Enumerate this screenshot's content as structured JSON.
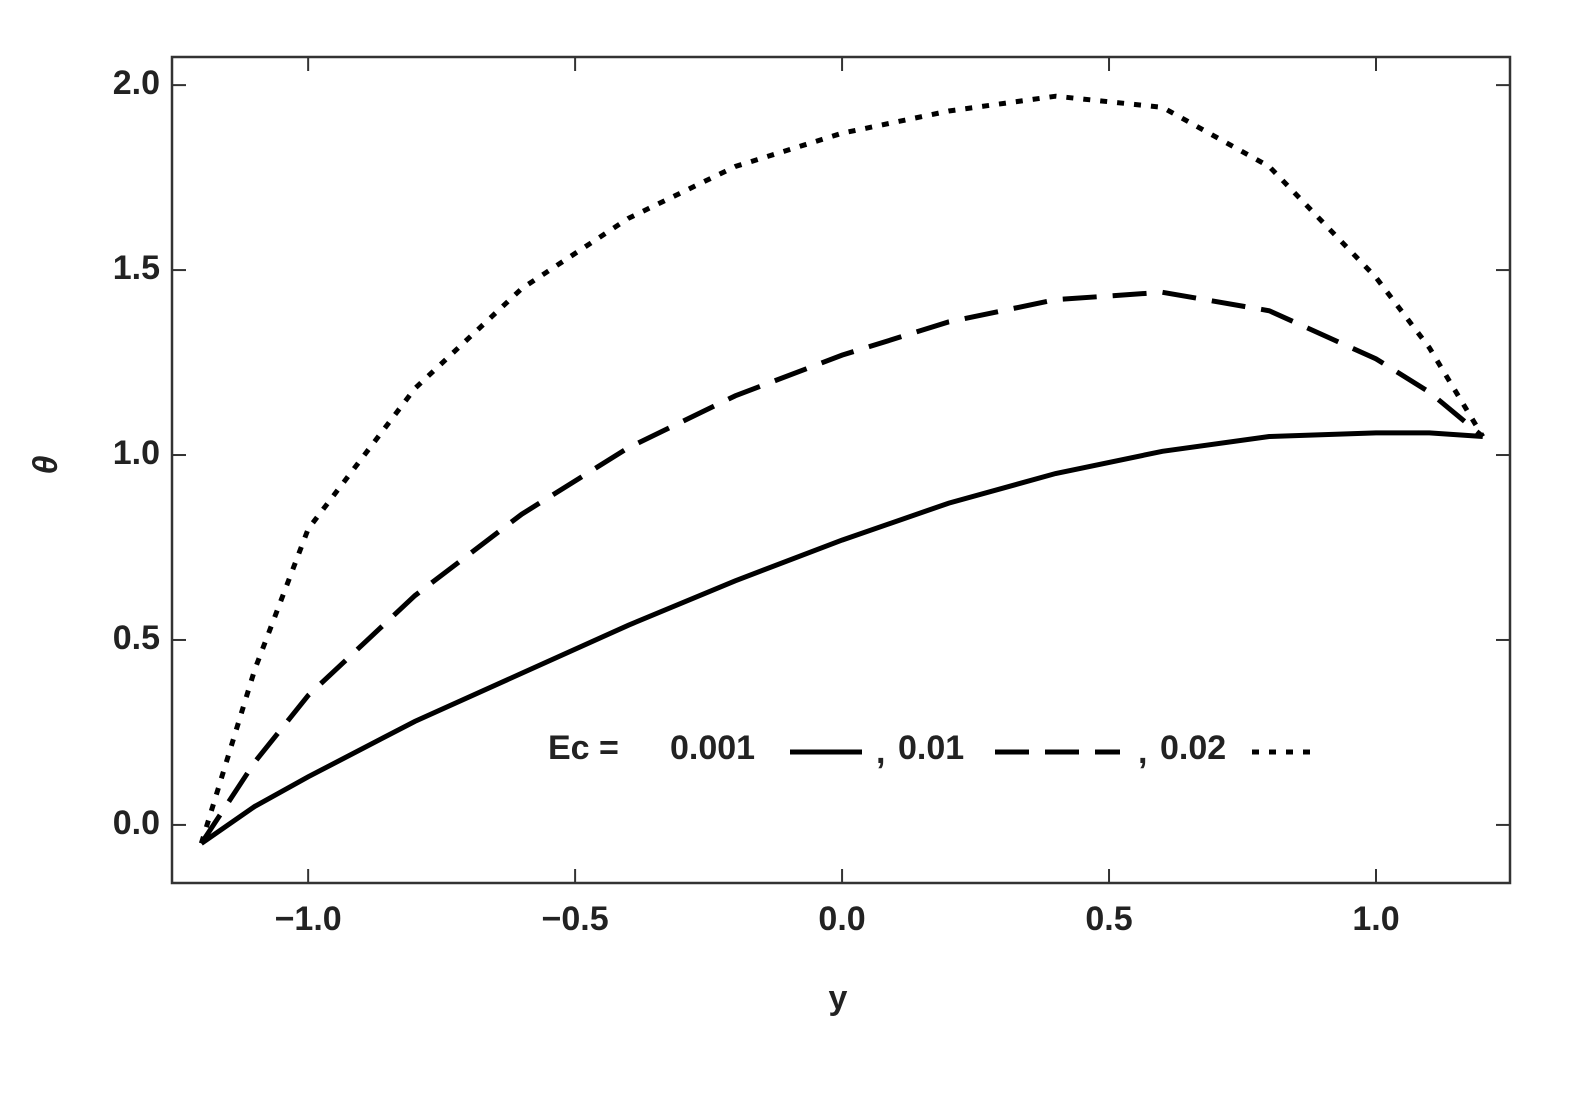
{
  "chart_data": {
    "type": "line",
    "xlabel": "y",
    "ylabel": "θ",
    "x": [
      -1.2,
      -1.1,
      -1.0,
      -0.8,
      -0.6,
      -0.4,
      -0.2,
      0,
      0.2,
      0.4,
      0.6,
      0.8,
      1.0,
      1.1,
      1.2
    ],
    "series": [
      {
        "name": "0.001",
        "color": "#000000",
        "dash": "solid",
        "values": [
          -0.05,
          0.05,
          0.13,
          0.28,
          0.41,
          0.54,
          0.66,
          0.77,
          0.87,
          0.95,
          1.01,
          1.05,
          1.06,
          1.06,
          1.05
        ]
      },
      {
        "name": "0.01",
        "color": "#000000",
        "dash": "dashed",
        "values": [
          -0.05,
          0.17,
          0.35,
          0.62,
          0.84,
          1.02,
          1.16,
          1.27,
          1.36,
          1.42,
          1.44,
          1.39,
          1.26,
          1.17,
          1.05
        ]
      },
      {
        "name": "0.02",
        "color": "#000000",
        "dash": "dotted",
        "values": [
          -0.05,
          0.42,
          0.8,
          1.18,
          1.45,
          1.64,
          1.78,
          1.87,
          1.93,
          1.97,
          1.94,
          1.78,
          1.48,
          1.29,
          1.05
        ]
      }
    ],
    "legend_title": "Ec =",
    "legend_separator": ",",
    "xlim": [
      -1.255,
      1.251
    ],
    "ylim": [
      -0.157,
      2.076
    ],
    "xticks": [
      {
        "value": -1.0,
        "label": "−1.0"
      },
      {
        "value": -0.5,
        "label": "−0.5"
      },
      {
        "value": 0,
        "label": "0.0"
      },
      0.5,
      {
        "value": 1.0,
        "label": "1.0"
      }
    ],
    "yticks": [
      {
        "value": 0,
        "label": "0.0"
      },
      0.5,
      {
        "value": 1.0,
        "label": "1.0"
      },
      1.5,
      {
        "value": 2.0,
        "label": "2.0"
      }
    ],
    "grid": false
  }
}
